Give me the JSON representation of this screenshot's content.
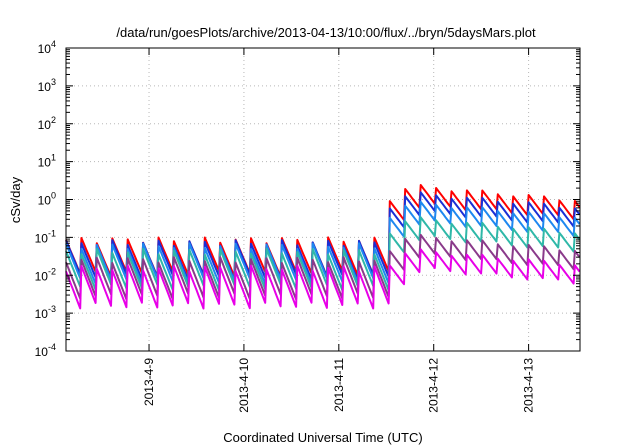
{
  "chart_data": {
    "type": "line",
    "title": "/data/run/goesPlots/archive/2013-04-13/10:00/flux/../bryn/5daysMars.plot",
    "xlabel": "Coordinated Universal Time (UTC)",
    "ylabel": "cSv/day",
    "x_scale": "time",
    "y_scale": "log",
    "xlim": [
      "2013-04-08T03:00",
      "2013-04-13T13:00"
    ],
    "ylim": [
      0.0001,
      10000
    ],
    "y_ticks": [
      {
        "mantissa": "10",
        "exp": "-4"
      },
      {
        "mantissa": "10",
        "exp": "-3"
      },
      {
        "mantissa": "10",
        "exp": "-2"
      },
      {
        "mantissa": "10",
        "exp": "-1"
      },
      {
        "mantissa": "10",
        "exp": "0"
      },
      {
        "mantissa": "10",
        "exp": "1"
      },
      {
        "mantissa": "10",
        "exp": "2"
      },
      {
        "mantissa": "10",
        "exp": "3"
      },
      {
        "mantissa": "10",
        "exp": "4"
      }
    ],
    "x_ticks": [
      {
        "label": "2013-4-9",
        "value": "2013-04-09T00:00"
      },
      {
        "label": "2013-4-10",
        "value": "2013-04-10T00:00"
      },
      {
        "label": "2013-4-11",
        "value": "2013-04-11T00:00"
      },
      {
        "label": "2013-4-12",
        "value": "2013-04-12T00:00"
      },
      {
        "label": "2013-4-13",
        "value": "2013-04-13T00:00"
      }
    ],
    "grid": true,
    "legend": "none",
    "event_onset": "2013-04-11T12:00",
    "series": [
      {
        "color": "#ff0000",
        "quiet_peak": 0.1,
        "event_peak": 2.5
      },
      {
        "color": "#1a2fd6",
        "quiet_peak": 0.085,
        "event_peak": 1.6
      },
      {
        "color": "#1e88f0",
        "quiet_peak": 0.07,
        "event_peak": 0.9
      },
      {
        "color": "#2fb8a8",
        "quiet_peak": 0.05,
        "event_peak": 0.35
      },
      {
        "color": "#8a3a8a",
        "quiet_peak": 0.03,
        "event_peak": 0.12
      },
      {
        "color": "#e800e8",
        "quiet_peak": 0.018,
        "event_peak": 0.05
      }
    ]
  }
}
